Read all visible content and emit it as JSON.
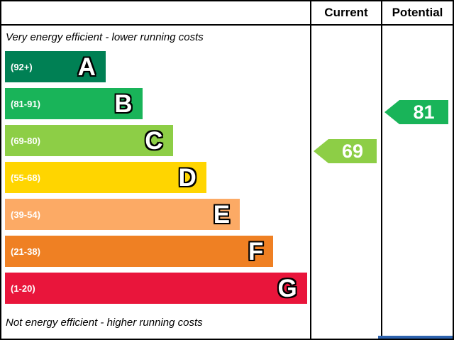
{
  "header": {
    "current_label": "Current",
    "potential_label": "Potential"
  },
  "captions": {
    "top": "Very energy efficient - lower running costs",
    "bottom": "Not energy efficient - higher running costs"
  },
  "chart_data": {
    "type": "bar",
    "subtype": "epc-energy-efficiency-rating",
    "bands": [
      {
        "letter": "A",
        "range": "(92+)",
        "color": "#008054",
        "width_pct": 33
      },
      {
        "letter": "B",
        "range": "(81-91)",
        "color": "#19b459",
        "width_pct": 45
      },
      {
        "letter": "C",
        "range": "(69-80)",
        "color": "#8dce46",
        "width_pct": 55
      },
      {
        "letter": "D",
        "range": "(55-68)",
        "color": "#ffd500",
        "width_pct": 66
      },
      {
        "letter": "E",
        "range": "(39-54)",
        "color": "#fcaa65",
        "width_pct": 77
      },
      {
        "letter": "F",
        "range": "(21-38)",
        "color": "#ef8023",
        "width_pct": 88
      },
      {
        "letter": "G",
        "range": "(1-20)",
        "color": "#e9153b",
        "width_pct": 99
      }
    ],
    "current": {
      "value": 69,
      "band": "C",
      "color": "#8dce46"
    },
    "potential": {
      "value": 81,
      "band": "B",
      "color": "#19b459"
    }
  },
  "misc": {
    "cropped_edge_color": "#2d62ad"
  }
}
